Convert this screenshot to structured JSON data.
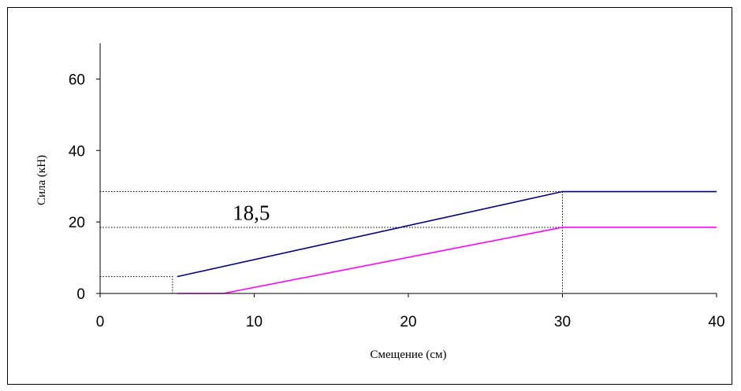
{
  "chart_data": {
    "type": "line",
    "title": "",
    "xlabel": "Смещение (см)",
    "ylabel": "Сила (кН)",
    "xlim": [
      0,
      40
    ],
    "ylim": [
      0,
      70
    ],
    "xticks": [
      "0",
      "10",
      "20",
      "30",
      "40"
    ],
    "yticks": [
      "0",
      "20",
      "40",
      "60"
    ],
    "grid": false,
    "legend": "none",
    "series": [
      {
        "color": "#000080",
        "points": [
          [
            5,
            4.7
          ],
          [
            30,
            28.5
          ],
          [
            40,
            28.5
          ]
        ]
      },
      {
        "color": "#ff00ff",
        "points": [
          [
            5,
            0
          ],
          [
            8,
            0
          ],
          [
            30,
            18.5
          ],
          [
            40,
            18.5
          ]
        ]
      }
    ],
    "reference_lines": [
      {
        "points": [
          [
            0,
            28.5
          ],
          [
            30,
            28.5
          ]
        ]
      },
      {
        "points": [
          [
            0,
            18.5
          ],
          [
            30,
            18.5
          ]
        ]
      },
      {
        "points": [
          [
            0,
            4.7
          ],
          [
            4.7,
            4.7
          ],
          [
            4.7,
            0
          ]
        ]
      },
      {
        "points": [
          [
            30,
            28.5
          ],
          [
            30,
            0
          ]
        ]
      }
    ],
    "annotations": [
      {
        "text": "18,5",
        "x": 8.6,
        "y": 20.6
      }
    ]
  }
}
